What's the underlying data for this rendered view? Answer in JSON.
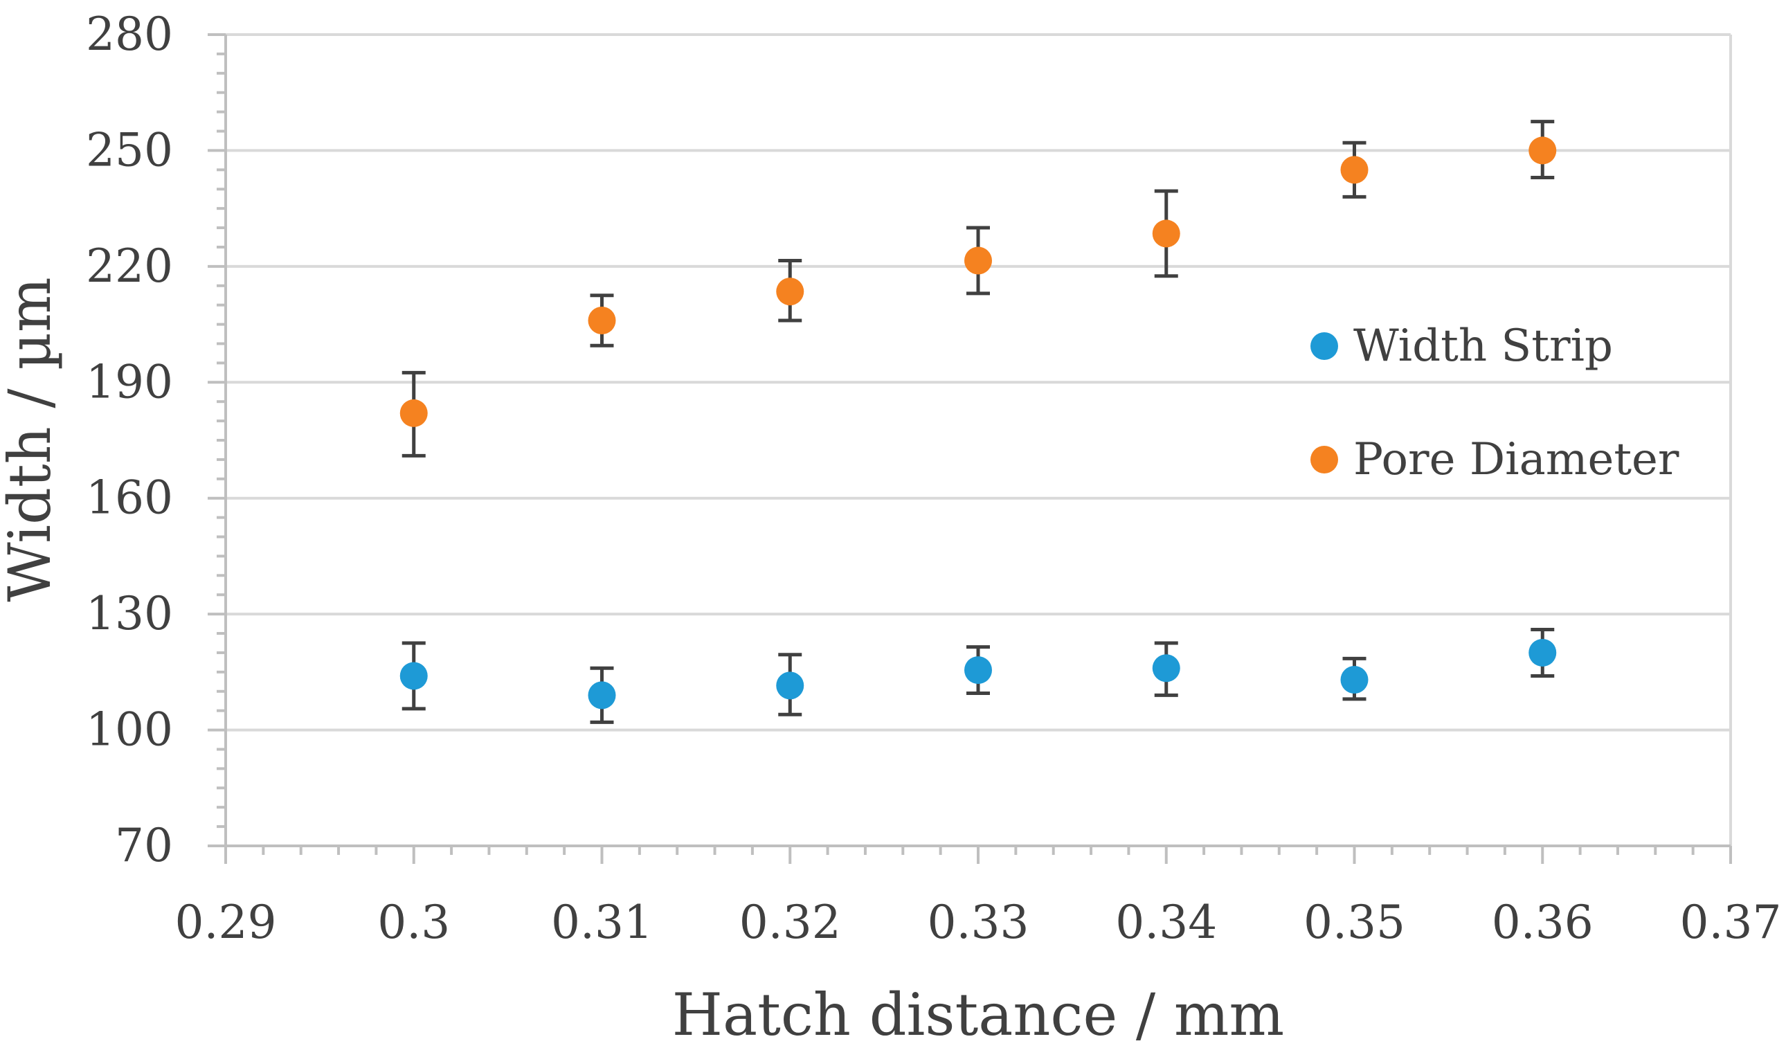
{
  "chart_data": {
    "type": "scatter",
    "title": "",
    "xlabel": "Hatch distance / mm",
    "ylabel": "Width / µm",
    "xlim": [
      0.29,
      0.37
    ],
    "ylim": [
      70,
      280
    ],
    "x_ticks": [
      "0.29",
      "0.3",
      "0.31",
      "0.32",
      "0.33",
      "0.34",
      "0.35",
      "0.36",
      "0.37"
    ],
    "y_ticks": [
      "70",
      "100",
      "130",
      "160",
      "190",
      "220",
      "250",
      "280"
    ],
    "x_tick_values": [
      0.29,
      0.3,
      0.31,
      0.32,
      0.33,
      0.34,
      0.35,
      0.36,
      0.37
    ],
    "y_tick_values": [
      70,
      100,
      130,
      160,
      190,
      220,
      250,
      280
    ],
    "grid": "horizontal",
    "legend_position": "right",
    "series": [
      {
        "name": "Width Strip",
        "color": "#1E9AD6",
        "x": [
          0.3,
          0.31,
          0.32,
          0.33,
          0.34,
          0.35,
          0.36
        ],
        "y": [
          114,
          109,
          111.5,
          115.5,
          116,
          113,
          120
        ],
        "err_low": [
          8.5,
          7,
          7.5,
          6,
          7,
          5,
          6
        ],
        "err_high": [
          8.5,
          7,
          8,
          6,
          6.5,
          5.5,
          6
        ]
      },
      {
        "name": "Pore Diameter",
        "color": "#F58220",
        "x": [
          0.3,
          0.31,
          0.32,
          0.33,
          0.34,
          0.35,
          0.36
        ],
        "y": [
          182,
          206,
          213.5,
          221.5,
          228.5,
          245,
          250
        ],
        "err_low": [
          11,
          6.5,
          7.5,
          8.5,
          11,
          7,
          7
        ],
        "err_high": [
          10.5,
          6.5,
          8,
          8.5,
          11,
          7,
          7.5
        ]
      }
    ]
  }
}
